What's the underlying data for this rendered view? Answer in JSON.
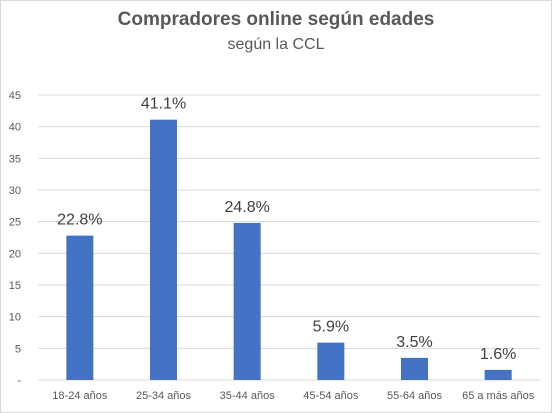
{
  "chart_data": {
    "type": "bar",
    "title": "Compradores online según edades",
    "subtitle": "según la CCL",
    "categories": [
      "18-24 años",
      "25-34 años",
      "35-44 años",
      "45-54 años",
      "55-64 años",
      "65 a más años"
    ],
    "values": [
      22.8,
      41.1,
      24.8,
      5.9,
      3.5,
      1.6
    ],
    "data_labels": [
      "22.8%",
      "41.1%",
      "24.8%",
      "5.9%",
      "3.5%",
      "1.6%"
    ],
    "ylim": [
      0,
      45
    ],
    "yticks": [
      0,
      5,
      10,
      15,
      20,
      25,
      30,
      35,
      40,
      45
    ],
    "ytick_labels": [
      "-",
      "5",
      "10",
      "15",
      "20",
      "25",
      "30",
      "35",
      "40",
      "45"
    ],
    "grid": true,
    "bar_color": "#4472c4",
    "grid_color": "#d9d9d9",
    "legend": "none"
  }
}
